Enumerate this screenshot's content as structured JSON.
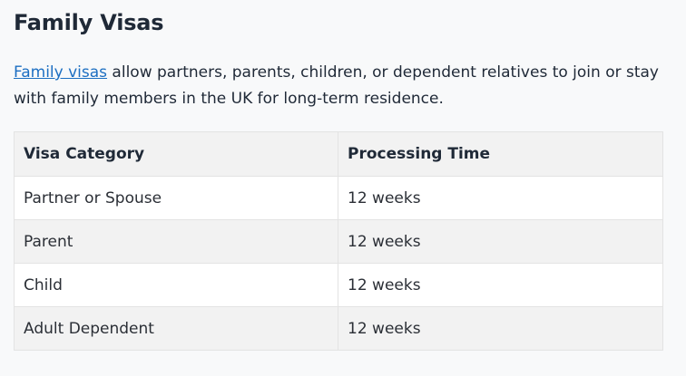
{
  "page": {
    "title": "Family Visas",
    "intro_link": "Family visas",
    "intro_rest": " allow partners, parents, children, or dependent relatives to join or stay with family members in the UK for long-term residence."
  },
  "table": {
    "headers": [
      "Visa Category",
      "Processing Time"
    ],
    "rows": [
      [
        "Partner or Spouse",
        "12 weeks"
      ],
      [
        "Parent",
        "12 weeks"
      ],
      [
        "Child",
        "12 weeks"
      ],
      [
        "Adult Dependent",
        "12 weeks"
      ]
    ]
  },
  "colors": {
    "link": "#1d6fc2",
    "header_bg": "#f2f2f2",
    "page_bg": "#f8f9fa"
  }
}
